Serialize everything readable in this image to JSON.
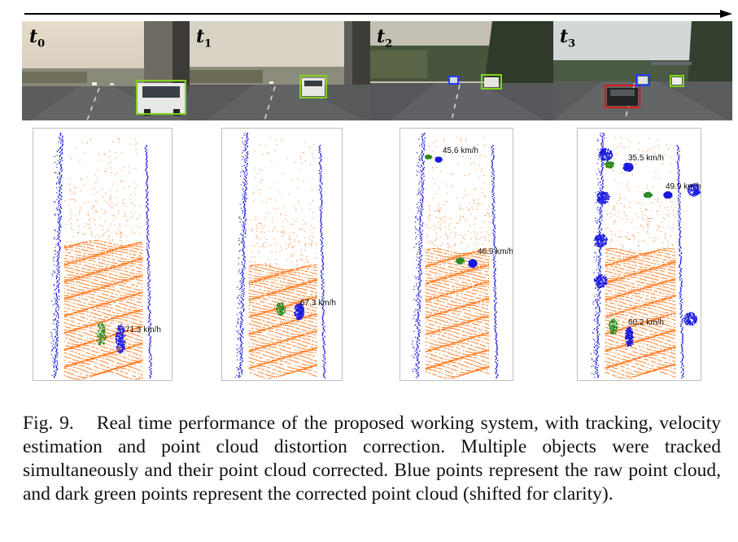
{
  "frames": [
    {
      "id": "t0",
      "label_base": "t",
      "label_sub": "0",
      "velocity": "71.3 km/h"
    },
    {
      "id": "t1",
      "label_base": "t",
      "label_sub": "1",
      "velocity": "67.3 km/h"
    },
    {
      "id": "t2",
      "label_base": "t",
      "label_sub": "2",
      "velocities": [
        "45.6 km/h",
        "46.9 km/h"
      ]
    },
    {
      "id": "t3",
      "label_base": "t",
      "label_sub": "3",
      "velocities": [
        "35.5 km/h",
        "49.9 km/h",
        "60.2 km/h"
      ]
    }
  ],
  "colors": {
    "raw_points": "#1a1adc",
    "corrected_points": "#2e8b22",
    "ground_points": "#ff7a1f",
    "tracked_box_green": "#7fd322",
    "tracked_box_red": "#e01818",
    "tracked_box_blue": "#2040ff"
  },
  "caption": {
    "label": "Fig. 9.",
    "text": "Real time performance of the proposed working system, with tracking, velocity estimation and point cloud distortion correction. Multiple objects were tracked simultaneously and their point cloud corrected. Blue points represent the raw point cloud, and dark green points represent the corrected point cloud (shifted for clarity)."
  }
}
